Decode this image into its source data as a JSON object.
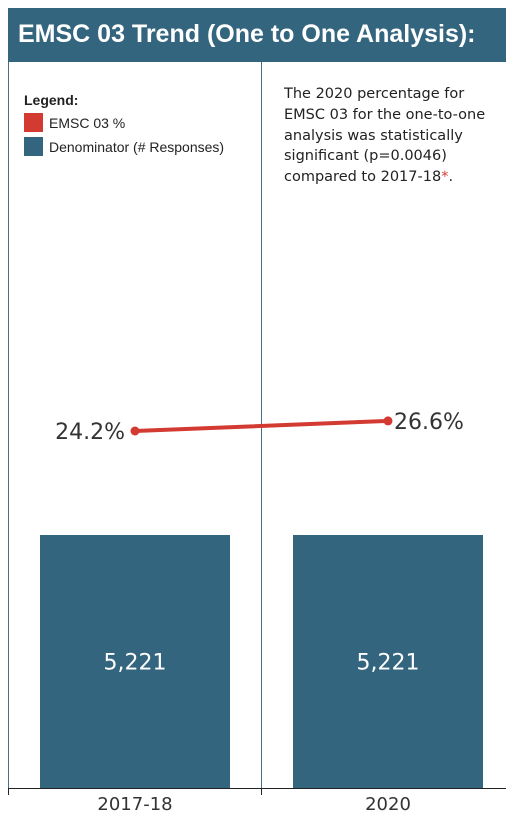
{
  "title": "EMSC 03 Trend (One to One Analysis):",
  "legend": {
    "title": "Legend:",
    "items": [
      {
        "label": "EMSC 03 %",
        "color": "#d33a31"
      },
      {
        "label": "Denominator (# Responses)",
        "color": "#33657e"
      }
    ]
  },
  "annotation": {
    "text": "The 2020 percentage for EMSC 03 for the one-to-one analysis was statistically significant (p=0.0046) compared to 2017-18",
    "marker": "*",
    "suffix": "."
  },
  "chart_data": {
    "type": "bar",
    "categories": [
      "2017-18",
      "2020"
    ],
    "series": [
      {
        "name": "Denominator (# Responses)",
        "type": "bar",
        "values": [
          5221,
          5221
        ],
        "labels": [
          "5,221",
          "5,221"
        ],
        "color": "#33657e"
      },
      {
        "name": "EMSC 03 %",
        "type": "line",
        "values": [
          24.2,
          26.6
        ],
        "labels": [
          "24.2%",
          "26.6%"
        ],
        "color": "#d33a31"
      }
    ]
  }
}
